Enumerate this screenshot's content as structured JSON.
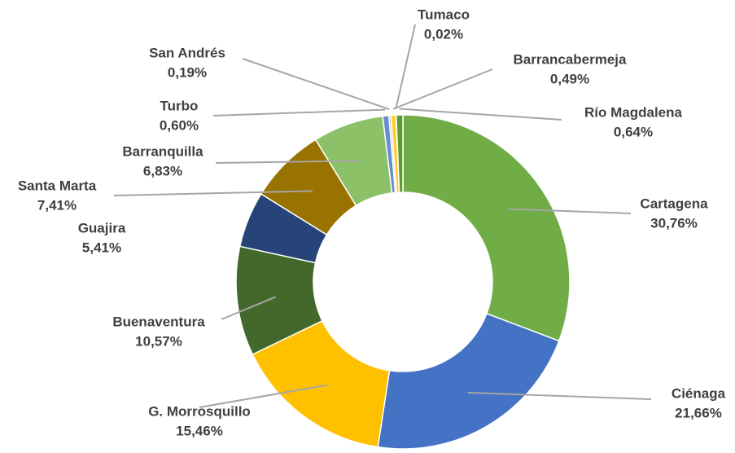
{
  "chart_data": {
    "type": "donut",
    "categories": [
      "Cartagena",
      "Ciénaga",
      "G. Morrosquillo",
      "Buenaventura",
      "Guajira",
      "Santa Marta",
      "Barranquilla",
      "Turbo",
      "San Andrés",
      "Barrancabermeja",
      "Tumaco",
      "Río Magdalena"
    ],
    "values": [
      30.76,
      21.66,
      15.46,
      10.57,
      5.41,
      7.41,
      6.83,
      0.6,
      0.19,
      0.49,
      0.02,
      0.64
    ],
    "value_labels": [
      "30,76%",
      "21,66%",
      "15,46%",
      "10,57%",
      "5,41%",
      "7,41%",
      "6,83%",
      "0,60%",
      "0,19%",
      "0,49%",
      "0,02%",
      "0,64%"
    ],
    "colors": [
      "#70ad47",
      "#4472c4",
      "#ffc000",
      "#43682b",
      "#264478",
      "#997300",
      "#8cc168",
      "#698ed0",
      "#b7b7b7",
      "#ffcd33",
      "#a5a5a5",
      "#5b9b2f"
    ]
  }
}
